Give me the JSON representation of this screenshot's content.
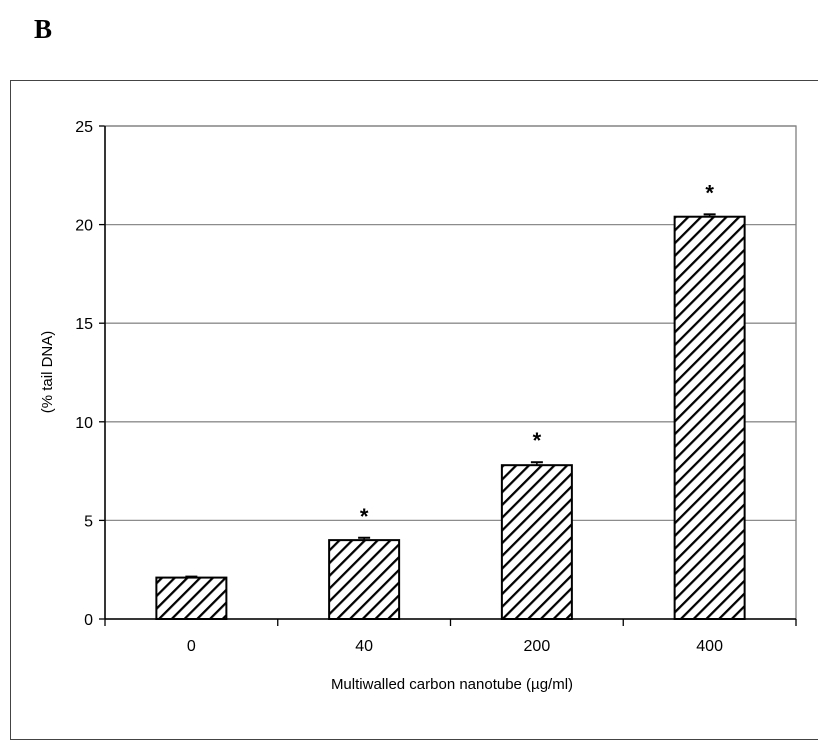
{
  "panel_label": "B",
  "chart_data": {
    "type": "bar",
    "categories": [
      "0",
      "40",
      "200",
      "400"
    ],
    "values": [
      2.1,
      4.0,
      7.8,
      20.4
    ],
    "errors": [
      0.05,
      0.12,
      0.15,
      0.12
    ],
    "significance": [
      "",
      "*",
      "*",
      "*"
    ],
    "xlabel": "Multiwalled carbon nanotube (µg/ml)",
    "ylabel": "(% tail DNA)",
    "ylim": [
      0,
      25
    ],
    "yticks": [
      0,
      5,
      10,
      15,
      20,
      25
    ],
    "grid": true,
    "bar_fill": "diagonal-hatch",
    "colors": {
      "bar_stroke": "#000000",
      "grid": "#8c8c8c",
      "background": "#ffffff"
    }
  }
}
